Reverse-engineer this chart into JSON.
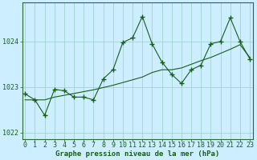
{
  "xlabel": "Graphe pression niveau de la mer (hPa)",
  "bg_color": "#cceeff",
  "grid_color": "#99cccc",
  "line_color": "#1a5c1a",
  "x_values": [
    0,
    1,
    2,
    3,
    4,
    5,
    6,
    7,
    8,
    9,
    10,
    11,
    12,
    13,
    14,
    15,
    16,
    17,
    18,
    19,
    20,
    21,
    22,
    23
  ],
  "y_main": [
    1022.85,
    1022.72,
    1022.38,
    1022.95,
    1022.92,
    1022.78,
    1022.78,
    1022.72,
    1023.18,
    1023.38,
    1023.98,
    1024.08,
    1024.55,
    1023.95,
    1023.55,
    1023.28,
    1023.08,
    1023.38,
    1023.48,
    1023.95,
    1024.0,
    1024.52,
    1024.0,
    1023.62
  ],
  "y_smooth": [
    1022.72,
    1022.72,
    1022.72,
    1022.78,
    1022.82,
    1022.86,
    1022.9,
    1022.94,
    1022.99,
    1023.04,
    1023.1,
    1023.16,
    1023.22,
    1023.32,
    1023.38,
    1023.38,
    1023.42,
    1023.5,
    1023.58,
    1023.65,
    1023.74,
    1023.83,
    1023.93,
    1023.65
  ],
  "ylim": [
    1021.85,
    1024.85
  ],
  "yticks": [
    1022,
    1023,
    1024
  ],
  "xticks": [
    0,
    1,
    2,
    3,
    4,
    5,
    6,
    7,
    8,
    9,
    10,
    11,
    12,
    13,
    14,
    15,
    16,
    17,
    18,
    19,
    20,
    21,
    22,
    23
  ],
  "xlabel_fontsize": 6.5,
  "tick_fontsize": 6.0,
  "label_color": "#1a5c1a",
  "border_color": "#2a6a2a",
  "figsize": [
    3.2,
    2.0
  ],
  "dpi": 100
}
